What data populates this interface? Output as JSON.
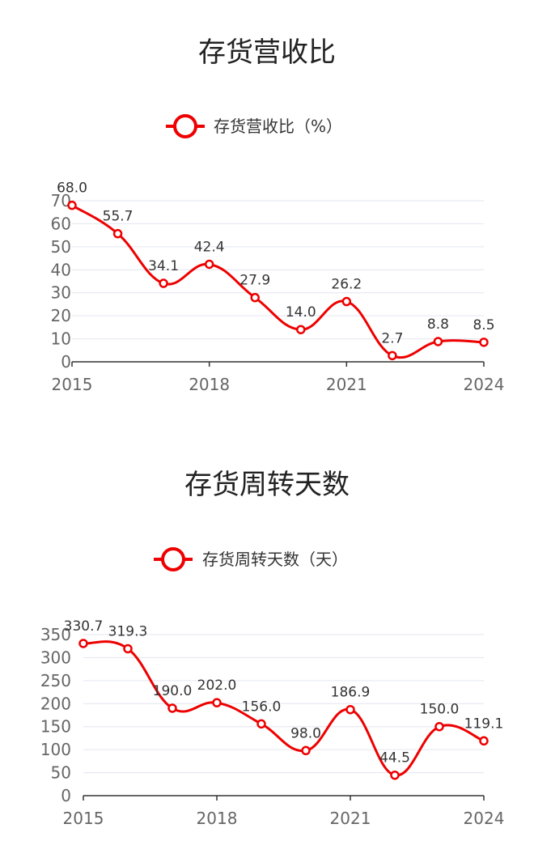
{
  "chart_data": [
    {
      "type": "line",
      "title": "存货营收比",
      "x": [
        "2015",
        "2016",
        "2017",
        "2018",
        "2019",
        "2020",
        "2021",
        "2022",
        "2023",
        "2024"
      ],
      "x_tick_labels": [
        "2015",
        "2018",
        "2021",
        "2024"
      ],
      "y_tick_labels": [
        "0",
        "10",
        "20",
        "30",
        "40",
        "50",
        "60",
        "70"
      ],
      "ylim": [
        0,
        70
      ],
      "grid": true,
      "legend_position": "top-center",
      "series": [
        {
          "name": "存货营收比（%）",
          "values": [
            68.0,
            55.7,
            34.1,
            42.4,
            27.9,
            14.0,
            26.2,
            2.7,
            8.8,
            8.5
          ],
          "labels": [
            "68.0",
            "55.7",
            "34.1",
            "42.4",
            "27.9",
            "14.0",
            "26.2",
            "2.7",
            "8.8",
            "8.5"
          ]
        }
      ],
      "colors": {
        "series": "#ee0000",
        "grid": "#e3e6f0",
        "axis": "#333333"
      }
    },
    {
      "type": "line",
      "title": "存货周转天数",
      "x": [
        "2015",
        "2016",
        "2017",
        "2018",
        "2019",
        "2020",
        "2021",
        "2022",
        "2023",
        "2024"
      ],
      "x_tick_labels": [
        "2015",
        "2018",
        "2021",
        "2024"
      ],
      "y_tick_labels": [
        "0",
        "50",
        "100",
        "150",
        "200",
        "250",
        "300",
        "350"
      ],
      "ylim": [
        0,
        350
      ],
      "grid": true,
      "legend_position": "top-center",
      "series": [
        {
          "name": "存货周转天数（天）",
          "values": [
            330.7,
            319.3,
            190.0,
            202.0,
            156.0,
            98.0,
            186.9,
            44.5,
            150.0,
            119.1
          ],
          "labels": [
            "330.7",
            "319.3",
            "190.0",
            "202.0",
            "156.0",
            "98.0",
            "186.9",
            "44.5",
            "150.0",
            "119.1"
          ]
        }
      ],
      "colors": {
        "series": "#ee0000",
        "grid": "#e3e6f0",
        "axis": "#333333"
      }
    }
  ]
}
